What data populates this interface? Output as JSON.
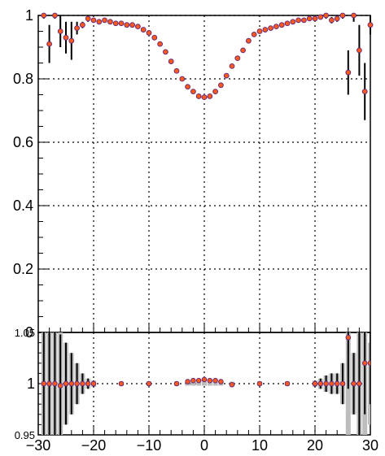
{
  "chart_data": [
    {
      "type": "scatter",
      "title": "",
      "xlabel": "",
      "ylabel": "",
      "xlim": [
        -30,
        30
      ],
      "ylim": [
        0,
        1.0
      ],
      "grid": true,
      "x_ticks": [
        "−30",
        "−20",
        "−10",
        "0",
        "10",
        "20",
        "30"
      ],
      "y_ticks": [
        "0.2",
        "0.4",
        "0.6",
        "0.8",
        "1"
      ],
      "colors": {
        "marker_outer": "#6a2a78",
        "marker_inner": "#ff5a1a",
        "error_bar": "#000000"
      },
      "series": [
        {
          "points": [
            [
              -29,
              1.0,
              0.01
            ],
            [
              -28,
              0.91,
              0.06
            ],
            [
              -27,
              1.0,
              0.01
            ],
            [
              -26,
              0.95,
              0.05
            ],
            [
              -25,
              0.93,
              0.05
            ],
            [
              -24,
              0.92,
              0.06
            ],
            [
              -23,
              0.96,
              0.02
            ],
            [
              -22,
              0.97,
              0.01
            ],
            [
              -21,
              0.99,
              0.01
            ],
            [
              -20,
              0.985,
              0.005
            ],
            [
              -19,
              0.98,
              0.005
            ],
            [
              -18,
              0.985,
              0.005
            ],
            [
              -17,
              0.98,
              0.005
            ],
            [
              -16,
              0.975,
              0.005
            ],
            [
              -15,
              0.975,
              0.005
            ],
            [
              -14,
              0.97,
              0.005
            ],
            [
              -13,
              0.97,
              0.005
            ],
            [
              -12,
              0.965,
              0.005
            ],
            [
              -11,
              0.955,
              0.005
            ],
            [
              -10,
              0.945,
              0.005
            ],
            [
              -9,
              0.93,
              0.005
            ],
            [
              -8,
              0.91,
              0.005
            ],
            [
              -7,
              0.885,
              0.005
            ],
            [
              -6,
              0.855,
              0.005
            ],
            [
              -5,
              0.825,
              0.005
            ],
            [
              -4,
              0.8,
              0.005
            ],
            [
              -3,
              0.775,
              0.005
            ],
            [
              -2,
              0.76,
              0.005
            ],
            [
              -1,
              0.745,
              0.005
            ],
            [
              0,
              0.742,
              0.005
            ],
            [
              1,
              0.745,
              0.005
            ],
            [
              2,
              0.76,
              0.005
            ],
            [
              3,
              0.78,
              0.005
            ],
            [
              4,
              0.81,
              0.005
            ],
            [
              5,
              0.84,
              0.005
            ],
            [
              6,
              0.865,
              0.005
            ],
            [
              7,
              0.89,
              0.005
            ],
            [
              8,
              0.92,
              0.005
            ],
            [
              9,
              0.94,
              0.005
            ],
            [
              10,
              0.95,
              0.005
            ],
            [
              11,
              0.955,
              0.005
            ],
            [
              12,
              0.96,
              0.005
            ],
            [
              13,
              0.965,
              0.005
            ],
            [
              14,
              0.97,
              0.005
            ],
            [
              15,
              0.975,
              0.005
            ],
            [
              16,
              0.98,
              0.005
            ],
            [
              17,
              0.985,
              0.005
            ],
            [
              18,
              0.985,
              0.005
            ],
            [
              19,
              0.99,
              0.005
            ],
            [
              20,
              0.99,
              0.005
            ],
            [
              21,
              0.995,
              0.005
            ],
            [
              22,
              1.0,
              0.01
            ],
            [
              23,
              0.985,
              0.01
            ],
            [
              24,
              0.99,
              0.01
            ],
            [
              25,
              1.0,
              0.01
            ],
            [
              26,
              0.82,
              0.07
            ],
            [
              27,
              1.0,
              0.02
            ],
            [
              28,
              0.89,
              0.08
            ],
            [
              29,
              0.76,
              0.09
            ],
            [
              30,
              0.97,
              0.03
            ]
          ]
        }
      ]
    },
    {
      "type": "scatter",
      "title": "",
      "xlabel": "",
      "ylabel": "",
      "xlim": [
        -30,
        30
      ],
      "ylim": [
        0.95,
        1.05
      ],
      "grid": true,
      "x_ticks": [
        "−30",
        "−20",
        "−10",
        "0",
        "10",
        "20",
        "30"
      ],
      "y_ticks": [
        "0.95",
        "1",
        "1.05"
      ],
      "band": "gray uncertainty band around 1",
      "series": [
        {
          "points": [
            [
              -29,
              1.0,
              0.05
            ],
            [
              -28,
              1.0,
              0.05
            ],
            [
              -27,
              1.0,
              0.05
            ],
            [
              -26,
              0.998,
              0.05
            ],
            [
              -25,
              1.0,
              0.04
            ],
            [
              -24,
              1.0,
              0.03
            ],
            [
              -23,
              1.0,
              0.02
            ],
            [
              -22,
              1.0,
              0.01
            ],
            [
              -21,
              1.0,
              0.005
            ],
            [
              -20,
              1.0,
              0.003
            ],
            [
              -15,
              1.0,
              0.002
            ],
            [
              -10,
              1.0,
              0.002
            ],
            [
              -5,
              1.0,
              0.002
            ],
            [
              -3,
              1.002,
              0.002
            ],
            [
              -2,
              1.003,
              0.002
            ],
            [
              -1,
              1.003,
              0.002
            ],
            [
              0,
              1.004,
              0.002
            ],
            [
              1,
              1.003,
              0.002
            ],
            [
              2,
              1.003,
              0.002
            ],
            [
              3,
              1.002,
              0.002
            ],
            [
              5,
              0.999,
              0.002
            ],
            [
              10,
              1.0,
              0.002
            ],
            [
              15,
              1.0,
              0.002
            ],
            [
              20,
              1.0,
              0.003
            ],
            [
              21,
              1.0,
              0.005
            ],
            [
              22,
              1.0,
              0.008
            ],
            [
              23,
              1.0,
              0.01
            ],
            [
              24,
              1.0,
              0.01
            ],
            [
              25,
              1.0,
              0.02
            ],
            [
              26,
              1.045,
              0.05
            ],
            [
              27,
              1.0,
              0.03
            ],
            [
              28,
              1.0,
              0.05
            ],
            [
              29,
              1.02,
              0.05
            ],
            [
              30,
              1.02,
              0.04
            ]
          ]
        }
      ]
    }
  ]
}
